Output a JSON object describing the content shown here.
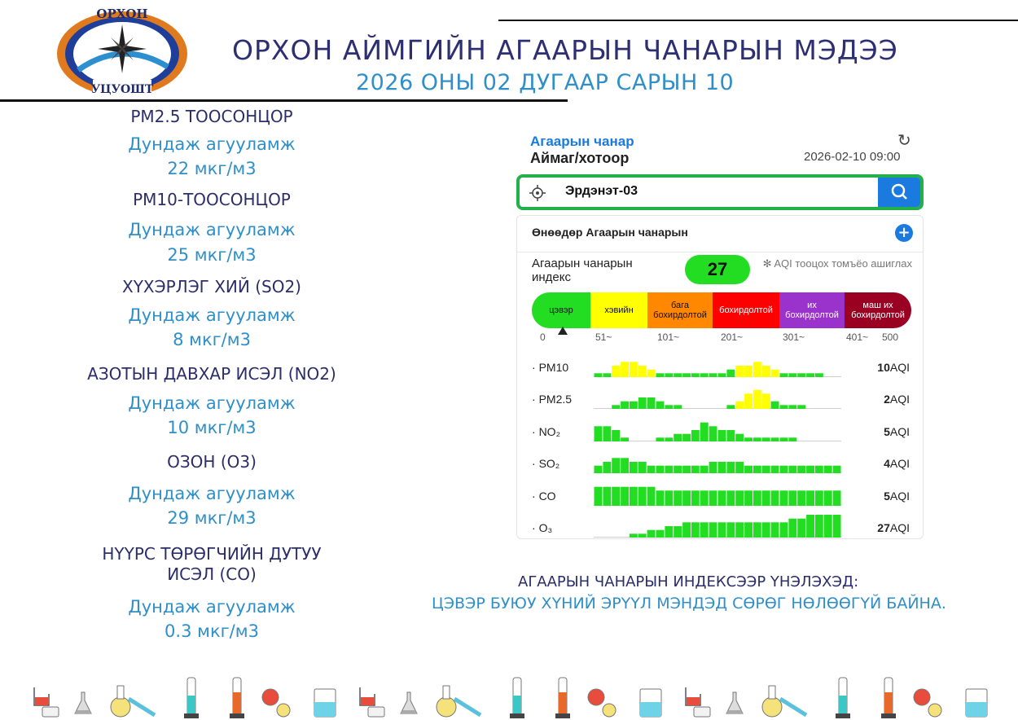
{
  "logo": {
    "top_text": "ОРХОН",
    "bottom_text": "УЦУОШТ"
  },
  "header": {
    "title": "ОРХОН АЙМГИЙН АГААРЫН ЧАНАРЫН МЭДЭЭ",
    "date": "2026 ОНЫ 02 ДУГААР САРЫН 10"
  },
  "pollutants": [
    {
      "name": "PM2.5 ТООСОНЦОР",
      "label": "Дундаж агууламж",
      "value": "22 мкг/м3"
    },
    {
      "name": "PM10-ТООСОНЦОР",
      "label": "Дундаж агууламж",
      "value": "25 мкг/м3"
    },
    {
      "name": "ХҮХЭРЛЭГ ХИЙ (SO2)",
      "label": "Дундаж агууламж",
      "value": "8 мкг/м3"
    },
    {
      "name": "АЗОТЫН ДАВХАР ИСЭЛ (NO2)",
      "label": "Дундаж агууламж",
      "value": "10 мкг/м3"
    },
    {
      "name": "ОЗОН (О3)",
      "label": "Дундаж агууламж",
      "value": "29 мкг/м3"
    },
    {
      "name_line1": "НҮҮРС ТӨРӨГЧИЙН ДУТУУ",
      "name_line2": "ИСЭЛ (CO)",
      "label": "Дундаж агууламж",
      "value": "0.3 мкг/м3"
    }
  ],
  "app": {
    "title": "Агаарын чанар",
    "subtitle": "Аймаг/хотоор",
    "datetime": "2026-02-10 09:00",
    "search_value": "Эрдэнэт-03",
    "card_title": "Өнөөдөр Агаарын чанарын",
    "aqi_label": "Агаарын чанарын индекс",
    "aqi_value": "27",
    "aqi_note": "✻ AQI тооцох томъёо ашиглах",
    "scale": [
      {
        "label": "цэвэр",
        "color": "#22dd22"
      },
      {
        "label": "хэвийн",
        "color": "#ffff00"
      },
      {
        "label": "бага бохирдолтой",
        "color": "#ff8800"
      },
      {
        "label": "бохирдолтой",
        "color": "#ff0000"
      },
      {
        "label": "их бохирдолтой",
        "color": "#9933cc"
      },
      {
        "label": "маш их бохирдолтой",
        "color": "#990022"
      }
    ],
    "ticks": [
      "0",
      "51~",
      "101~",
      "201~",
      "301~",
      "401~",
      "500"
    ],
    "rows": [
      {
        "name": "PM10",
        "aqi": "10",
        "unit": "AQI",
        "bars": [
          1,
          1,
          3,
          4,
          4,
          3,
          2,
          1,
          1,
          1,
          1,
          1,
          1,
          1,
          1,
          2,
          3,
          3,
          4,
          3,
          2,
          1,
          1,
          1,
          1,
          1,
          0,
          0
        ],
        "colors": [
          "g",
          "g",
          "y",
          "y",
          "y",
          "y",
          "y",
          "g",
          "g",
          "g",
          "g",
          "g",
          "g",
          "g",
          "g",
          "g",
          "y",
          "y",
          "y",
          "y",
          "y",
          "g",
          "g",
          "g",
          "g",
          "g",
          "g",
          "g"
        ]
      },
      {
        "name": "PM2.5",
        "aqi": "2",
        "unit": "AQI",
        "bars": [
          0,
          0,
          1,
          2,
          2,
          3,
          3,
          2,
          1,
          1,
          0,
          0,
          0,
          0,
          0,
          1,
          2,
          4,
          5,
          4,
          2,
          1,
          1,
          1,
          0,
          0,
          0,
          0
        ],
        "colors": [
          "g",
          "g",
          "g",
          "g",
          "g",
          "g",
          "g",
          "g",
          "g",
          "g",
          "g",
          "g",
          "g",
          "g",
          "g",
          "g",
          "y",
          "y",
          "y",
          "y",
          "g",
          "g",
          "g",
          "g",
          "g",
          "g",
          "g",
          "g"
        ]
      },
      {
        "name": "NO₂",
        "aqi": "5",
        "unit": "AQI",
        "bars": [
          4,
          4,
          3,
          1,
          0,
          0,
          0,
          1,
          1,
          2,
          2,
          3,
          5,
          4,
          3,
          3,
          2,
          1,
          1,
          1,
          1,
          1,
          1,
          0,
          0,
          0,
          0,
          0
        ],
        "colors": [
          "g",
          "g",
          "g",
          "g",
          "g",
          "g",
          "g",
          "g",
          "g",
          "g",
          "g",
          "g",
          "g",
          "g",
          "g",
          "g",
          "g",
          "g",
          "g",
          "g",
          "g",
          "g",
          "g",
          "g",
          "g",
          "g",
          "g",
          "g"
        ]
      },
      {
        "name": "SO₂",
        "aqi": "4",
        "unit": "AQI",
        "bars": [
          2,
          3,
          4,
          4,
          3,
          3,
          2,
          2,
          2,
          2,
          2,
          2,
          2,
          3,
          3,
          3,
          3,
          2,
          2,
          2,
          2,
          2,
          2,
          2,
          2,
          2,
          2,
          2
        ],
        "colors": [
          "g",
          "g",
          "g",
          "g",
          "g",
          "g",
          "g",
          "g",
          "g",
          "g",
          "g",
          "g",
          "g",
          "g",
          "g",
          "g",
          "g",
          "g",
          "g",
          "g",
          "g",
          "g",
          "g",
          "g",
          "g",
          "g",
          "g",
          "g"
        ]
      },
      {
        "name": "CO",
        "aqi": "5",
        "unit": "AQI",
        "bars": [
          5,
          5,
          5,
          5,
          5,
          5,
          5,
          4,
          4,
          4,
          4,
          4,
          4,
          4,
          4,
          4,
          4,
          4,
          4,
          4,
          4,
          4,
          4,
          4,
          4,
          4,
          4,
          4
        ],
        "colors": [
          "g",
          "g",
          "g",
          "g",
          "g",
          "g",
          "g",
          "g",
          "g",
          "g",
          "g",
          "g",
          "g",
          "g",
          "g",
          "g",
          "g",
          "g",
          "g",
          "g",
          "g",
          "g",
          "g",
          "g",
          "g",
          "g",
          "g",
          "g"
        ]
      },
      {
        "name": "O₃",
        "aqi": "27",
        "unit": "AQI",
        "bars": [
          0,
          0,
          0,
          0,
          1,
          1,
          2,
          2,
          3,
          3,
          4,
          4,
          4,
          4,
          4,
          4,
          4,
          4,
          4,
          4,
          4,
          4,
          5,
          5,
          6,
          6,
          6,
          6
        ],
        "colors": [
          "g",
          "g",
          "g",
          "g",
          "g",
          "g",
          "g",
          "g",
          "g",
          "g",
          "g",
          "g",
          "g",
          "g",
          "g",
          "g",
          "g",
          "g",
          "g",
          "g",
          "g",
          "g",
          "g",
          "g",
          "g",
          "g",
          "g",
          "g"
        ]
      }
    ]
  },
  "conclusion": {
    "line1": "АГААРЫН ЧАНАРЫН ИНДЕКСЭЭР ҮНЭЛЭХЭД:",
    "line2": "ЦЭВЭР БУЮУ ХҮНИЙ ЭРҮҮЛ МЭНДЭД СӨРӨГ НӨЛӨӨГҮЙ БАЙНА."
  },
  "colors": {
    "navy": "#2b2e6a",
    "blue": "#2f8fc8",
    "green": "#22dd22",
    "yellow": "#ffff00"
  }
}
